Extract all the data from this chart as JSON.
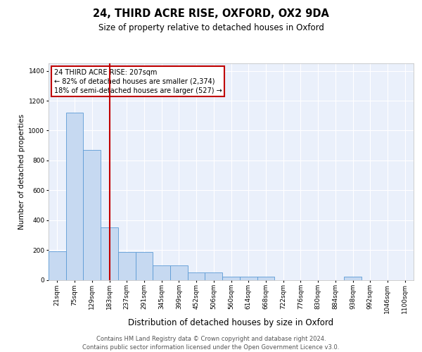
{
  "title": "24, THIRD ACRE RISE, OXFORD, OX2 9DA",
  "subtitle": "Size of property relative to detached houses in Oxford",
  "xlabel": "Distribution of detached houses by size in Oxford",
  "ylabel": "Number of detached properties",
  "footer_line1": "Contains HM Land Registry data © Crown copyright and database right 2024.",
  "footer_line2": "Contains public sector information licensed under the Open Government Licence v3.0.",
  "categories": [
    "21sqm",
    "75sqm",
    "129sqm",
    "183sqm",
    "237sqm",
    "291sqm",
    "345sqm",
    "399sqm",
    "452sqm",
    "506sqm",
    "560sqm",
    "614sqm",
    "668sqm",
    "722sqm",
    "776sqm",
    "830sqm",
    "884sqm",
    "938sqm",
    "992sqm",
    "1046sqm",
    "1100sqm"
  ],
  "bar_values": [
    193,
    1120,
    870,
    350,
    185,
    185,
    97,
    97,
    50,
    50,
    22,
    22,
    22,
    0,
    0,
    0,
    0,
    22,
    0,
    0,
    0
  ],
  "bar_color": "#c6d9f1",
  "bar_edge_color": "#5b9bd5",
  "vline_x_index": 3.0,
  "vline_color": "#c00000",
  "annotation_line1": "24 THIRD ACRE RISE: 207sqm",
  "annotation_line2": "← 82% of detached houses are smaller (2,374)",
  "annotation_line3": "18% of semi-detached houses are larger (527) →",
  "annotation_box_edge_color": "#c00000",
  "ylim": [
    0,
    1450
  ],
  "yticks": [
    0,
    200,
    400,
    600,
    800,
    1000,
    1200,
    1400
  ],
  "bg_color": "#eaf0fb",
  "grid_color": "#ffffff",
  "title_fontsize": 10.5,
  "subtitle_fontsize": 8.5,
  "xlabel_fontsize": 8.5,
  "ylabel_fontsize": 7.5,
  "tick_fontsize": 6.5,
  "footer_fontsize": 6.0,
  "annot_fontsize": 7.0
}
